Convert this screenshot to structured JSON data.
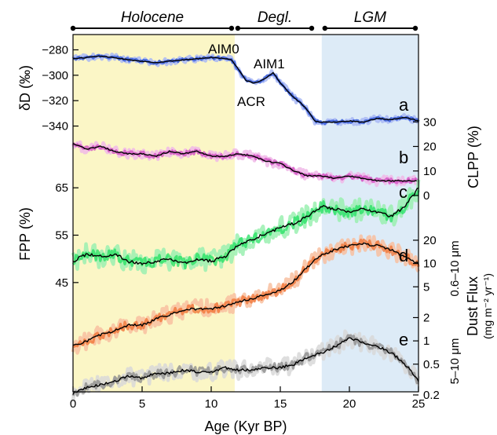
{
  "chart_data": {
    "type": "line",
    "xlabel": "Age (Kyr BP)",
    "xlim": [
      0,
      25
    ],
    "x_ticks": [
      0,
      5,
      10,
      15,
      20,
      25
    ],
    "periods": [
      {
        "label": "Holocene",
        "start": 0,
        "end": 11.7
      },
      {
        "label": "Degl.",
        "start": 11.7,
        "end": 17.5
      },
      {
        "label": "LGM",
        "start": 18,
        "end": 25
      }
    ],
    "shaded_regions": [
      {
        "name": "holocene-shading",
        "start": 0,
        "end": 11.7,
        "color": "#fbf6c6"
      },
      {
        "name": "lgm-shading",
        "start": 18,
        "end": 25,
        "color": "#ddebf7"
      }
    ],
    "axes": {
      "dD": {
        "label": "δD (‰)",
        "side": "left",
        "ticks": [
          -280,
          -300,
          -320,
          -340
        ],
        "range": [
          -276,
          -344
        ]
      },
      "CLPP": {
        "label": "CLPP (%)",
        "side": "right",
        "ticks": [
          30,
          20,
          10,
          0
        ],
        "range": [
          32,
          0
        ]
      },
      "FPP": {
        "label": "FPP (%)",
        "side": "left",
        "ticks": [
          65,
          55,
          45
        ],
        "range": [
          70,
          40
        ]
      },
      "dust": {
        "label": "Dust Flux",
        "unit": "(mg m⁻² yr⁻¹)",
        "side": "right",
        "scale": "log",
        "ticks": [
          "20",
          "10",
          "5",
          "2",
          "1",
          "0.5",
          "0.2"
        ],
        "range": [
          35,
          0.2
        ]
      },
      "dust_fine_label": "0.6–10 μm",
      "dust_coarse_label": "5–10 μm"
    },
    "panel_letters": [
      "a",
      "b",
      "c",
      "d",
      "e"
    ],
    "annotations": [
      "AIM0",
      "AIM1",
      "ACR"
    ],
    "series": [
      {
        "id": "a",
        "axis": "dD",
        "color": "#2850d8",
        "band_color": "#a9b8f4",
        "x": [
          0,
          1,
          2,
          3,
          4,
          5,
          6,
          7,
          8,
          9,
          10,
          11,
          11.5,
          12,
          12.5,
          13,
          13.5,
          14,
          14.5,
          15,
          15.5,
          16,
          16.5,
          17,
          17.5,
          18,
          19,
          20,
          21,
          22,
          23,
          24,
          25
        ],
        "y": [
          -287,
          -286,
          -285,
          -286,
          -288,
          -289,
          -290,
          -289,
          -288,
          -287,
          -286,
          -287,
          -288,
          -296,
          -304,
          -306,
          -305,
          -302,
          -298,
          -306,
          -312,
          -318,
          -322,
          -328,
          -336,
          -337,
          -337,
          -336,
          -337,
          -334,
          -335,
          -333,
          -336
        ]
      },
      {
        "id": "b",
        "axis": "CLPP",
        "color": "#d048c0",
        "band_color": "#f0b8e8",
        "x": [
          0,
          1,
          2,
          3,
          4,
          5,
          6,
          7,
          8,
          9,
          10,
          11,
          12,
          13,
          14,
          15,
          16,
          17,
          18,
          19,
          20,
          21,
          22,
          23,
          24,
          25
        ],
        "y": [
          21,
          19,
          20,
          18,
          17,
          17,
          16,
          18,
          17,
          18,
          16,
          16,
          17,
          16,
          14,
          13,
          10,
          8,
          8,
          7,
          8,
          7,
          6,
          6,
          6,
          6
        ]
      },
      {
        "id": "c",
        "axis": "FPP",
        "color": "#22e060",
        "band_color": "#9af0b0",
        "x": [
          0,
          1,
          2,
          3,
          4,
          5,
          6,
          7,
          8,
          9,
          10,
          11,
          12,
          13,
          14,
          15,
          16,
          17,
          18,
          19,
          20,
          21,
          22,
          23,
          24,
          25
        ],
        "y": [
          49.5,
          51,
          50.5,
          51,
          49.5,
          49,
          49.5,
          50,
          49,
          50,
          49.5,
          50.5,
          53,
          54,
          55.5,
          56.5,
          57.5,
          59,
          61,
          60.5,
          60,
          60.5,
          60,
          59,
          61,
          65
        ]
      },
      {
        "id": "d",
        "axis": "dust",
        "color": "#f07030",
        "band_color": "#f8c0a0",
        "x": [
          0,
          1,
          2,
          3,
          4,
          5,
          6,
          7,
          8,
          9,
          10,
          11,
          12,
          13,
          14,
          15,
          16,
          17,
          18,
          19,
          20,
          21,
          22,
          23,
          24,
          25
        ],
        "y": [
          0.85,
          1.0,
          1.2,
          1.35,
          1.6,
          1.6,
          1.9,
          2.2,
          2.5,
          2.6,
          2.6,
          2.8,
          3.2,
          3.5,
          4.0,
          4.5,
          6.0,
          9.0,
          13,
          15,
          17,
          18,
          17,
          15,
          12,
          10
        ]
      },
      {
        "id": "e",
        "axis": "dust",
        "color": "#888888",
        "band_color": "#d8d8d8",
        "x": [
          0,
          1,
          2,
          3,
          4,
          5,
          6,
          7,
          8,
          9,
          10,
          11,
          12,
          13,
          14,
          15,
          16,
          17,
          18,
          19,
          20,
          21,
          22,
          23,
          24,
          25
        ],
        "y": [
          0.21,
          0.25,
          0.27,
          0.3,
          0.35,
          0.33,
          0.38,
          0.38,
          0.42,
          0.4,
          0.4,
          0.45,
          0.42,
          0.42,
          0.45,
          0.45,
          0.5,
          0.62,
          0.7,
          0.85,
          1.1,
          0.95,
          0.85,
          0.7,
          0.5,
          0.3
        ]
      }
    ]
  }
}
